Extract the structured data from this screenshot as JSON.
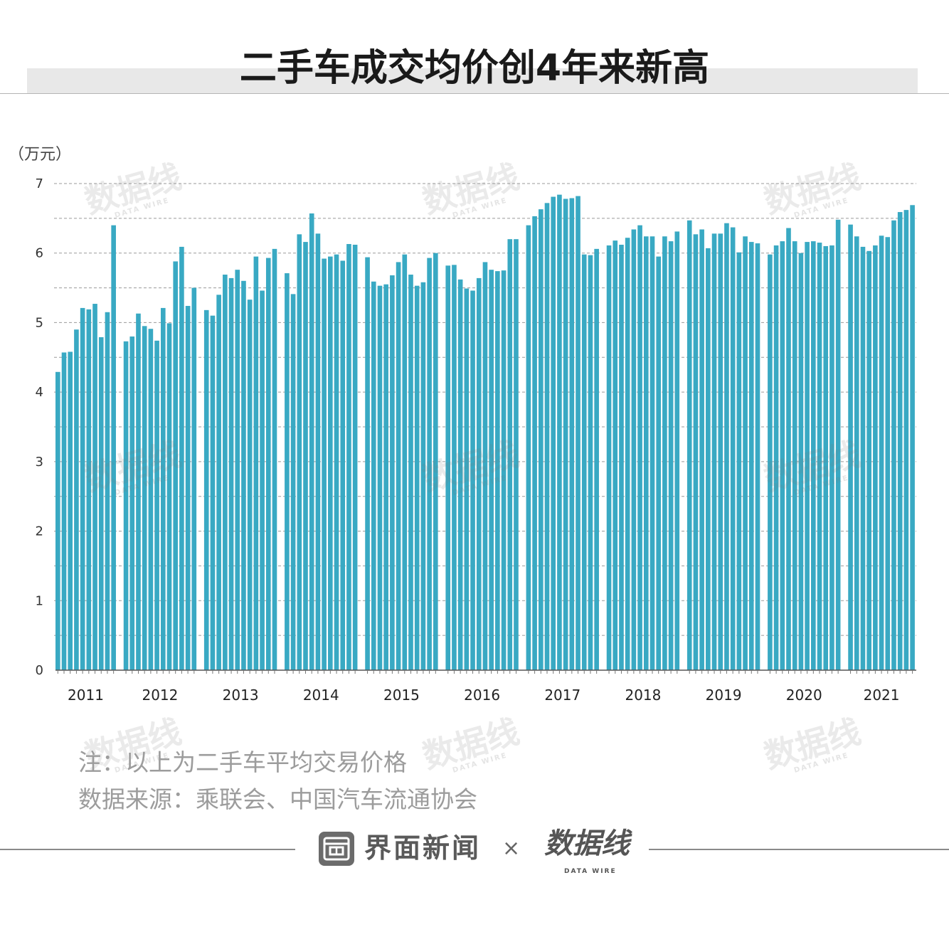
{
  "chart_data": {
    "type": "bar",
    "title": "二手车成交均价创4年来新高",
    "ylabel": "（万元）",
    "xlabel": "",
    "ylim": [
      0,
      7
    ],
    "yticks": [
      0,
      1,
      2,
      3,
      4,
      5,
      6,
      7
    ],
    "grid": true,
    "legend": "none",
    "bar_color": "#39a9c3",
    "groups": [
      {
        "year": "2011",
        "values": [
          4.29,
          4.57,
          4.58,
          4.9,
          5.21,
          5.19,
          5.27,
          4.79,
          5.15,
          6.4
        ]
      },
      {
        "year": "2012",
        "values": [
          4.73,
          4.8,
          5.13,
          4.95,
          4.91,
          4.74,
          5.21,
          4.99,
          5.88,
          6.09,
          5.24,
          5.5
        ]
      },
      {
        "year": "2013",
        "values": [
          5.18,
          5.1,
          5.4,
          5.69,
          5.64,
          5.76,
          5.6,
          5.33,
          5.95,
          5.46,
          5.93,
          6.06
        ]
      },
      {
        "year": "2014",
        "values": [
          5.71,
          5.41,
          6.27,
          6.16,
          6.57,
          6.28,
          5.92,
          5.95,
          5.98,
          5.89,
          6.13,
          6.12
        ]
      },
      {
        "year": "2015",
        "values": [
          5.94,
          5.59,
          5.53,
          5.55,
          5.68,
          5.87,
          5.98,
          5.69,
          5.53,
          5.58,
          5.93,
          6.0
        ]
      },
      {
        "year": "2016",
        "values": [
          5.82,
          5.83,
          5.62,
          5.49,
          5.46,
          5.64,
          5.87,
          5.76,
          5.74,
          5.75,
          6.2,
          6.2
        ]
      },
      {
        "year": "2017",
        "values": [
          6.4,
          6.53,
          6.63,
          6.72,
          6.81,
          6.84,
          6.78,
          6.79,
          6.82,
          5.98,
          5.97,
          6.06
        ]
      },
      {
        "year": "2018",
        "values": [
          6.11,
          6.18,
          6.12,
          6.22,
          6.34,
          6.4,
          6.24,
          6.24,
          5.95,
          6.24,
          6.17,
          6.31
        ]
      },
      {
        "year": "2019",
        "values": [
          6.47,
          6.27,
          6.34,
          6.07,
          6.28,
          6.28,
          6.43,
          6.37,
          6.01,
          6.24,
          6.16,
          6.14
        ]
      },
      {
        "year": "2020",
        "values": [
          5.98,
          6.11,
          6.17,
          6.36,
          6.17,
          6.0,
          6.16,
          6.17,
          6.15,
          6.1,
          6.11,
          6.48
        ]
      },
      {
        "year": "2021",
        "values": [
          6.41,
          6.24,
          6.09,
          6.03,
          6.11,
          6.25,
          6.23,
          6.47,
          6.59,
          6.62,
          6.69
        ]
      }
    ]
  },
  "notes": {
    "note": "注：以上为二手车平均交易价格",
    "source": "数据来源：乘联会、中国汽车流通协会"
  },
  "footer": {
    "brand": "界面新闻",
    "times": "×",
    "partner": "数据线",
    "partner_sub": "DATA WIRE"
  },
  "watermark": {
    "main": "数据线",
    "sub": "DATA WIRE"
  },
  "colors": {
    "title_band": "#e8e8e8",
    "note_text": "#9c9c9c",
    "brand_gray": "#6b6b6b"
  }
}
